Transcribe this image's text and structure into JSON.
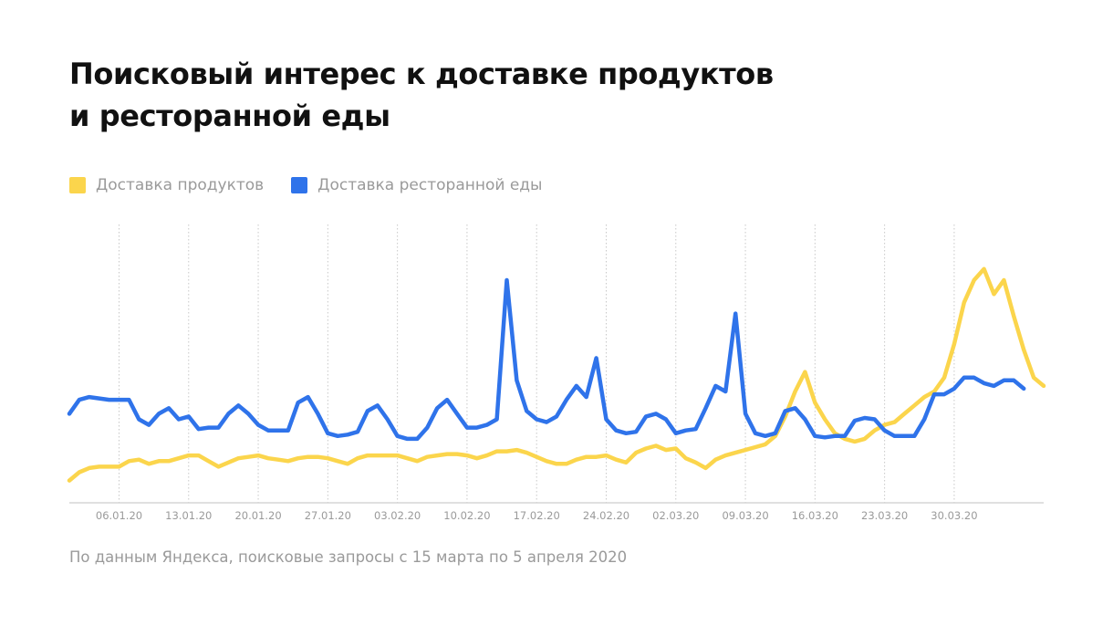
{
  "header": {
    "title_line1": "Поисковый интерес к доставке продуктов",
    "title_line2": "и ресторанной еды"
  },
  "footnote": "По данным Яндекса, поисковые запросы с 15 марта по 5 апреля 2020",
  "colors": {
    "grocery": "#fbd54c",
    "restaurant": "#2f73ea",
    "grid": "#c8c8c8",
    "axis": "#d6d6d6",
    "tick_text": "#9a9a9a"
  },
  "chart_data": {
    "type": "line",
    "x_start": "2020-01-01",
    "x_ticks": [
      "06.01.20",
      "13.01.20",
      "20.01.20",
      "27.01.20",
      "03.02.20",
      "10.02.20",
      "17.02.20",
      "24.02.20",
      "02.03.20",
      "09.03.20",
      "16.03.20",
      "23.03.20",
      "30.03.20"
    ],
    "grid": "vertical-dotted",
    "legend_position": "top-left",
    "ylim": [
      0,
      100
    ],
    "series": [
      {
        "name": "Доставка продуктов",
        "values": [
          8,
          11,
          12.5,
          13,
          13,
          13,
          15,
          15.5,
          14,
          15,
          15,
          16,
          17,
          17,
          15,
          13,
          14.5,
          16,
          16.5,
          17,
          16,
          15.5,
          15,
          16,
          16.5,
          16.5,
          16,
          15,
          14,
          16,
          17,
          17,
          17,
          17,
          16,
          15,
          16.5,
          17,
          17.5,
          17.5,
          17,
          16,
          17,
          18.5,
          18.5,
          19,
          18,
          16.5,
          15,
          14,
          14,
          15.5,
          16.5,
          16.5,
          17,
          15.5,
          14.5,
          18,
          19.5,
          20.5,
          19,
          19.5,
          16,
          14.5,
          12.5,
          15.5,
          17,
          18,
          19,
          20,
          21,
          24,
          31,
          40,
          47,
          36,
          30,
          25,
          23,
          22,
          23,
          26,
          28,
          29,
          32,
          35,
          38,
          40,
          45,
          57,
          72,
          80,
          84,
          75,
          80,
          67,
          55,
          45,
          42
        ],
        "color_key": "grocery"
      },
      {
        "name": "Доставка ресторанной еды",
        "values": [
          32,
          37,
          38,
          37.5,
          37,
          37,
          37,
          30,
          28,
          32,
          34,
          30,
          31,
          26.5,
          27,
          27,
          32,
          35,
          32,
          28,
          26,
          26,
          26,
          36,
          38,
          32,
          25,
          24,
          24.5,
          25.5,
          33,
          35,
          30,
          24,
          23,
          23,
          27,
          34,
          37,
          32,
          27,
          27,
          28,
          30,
          80,
          44,
          33,
          30,
          29,
          31,
          37,
          42,
          38,
          52,
          30,
          26,
          25,
          25.5,
          31,
          32,
          30,
          25,
          26,
          26.5,
          34,
          42,
          40,
          68,
          32,
          25,
          24,
          25,
          33,
          34,
          30,
          24,
          23.5,
          24,
          24,
          29.5,
          30.5,
          30,
          26,
          24,
          24,
          24,
          30,
          39,
          39,
          41,
          45,
          45,
          43,
          42,
          44,
          44,
          41
        ]
      }
    ]
  }
}
